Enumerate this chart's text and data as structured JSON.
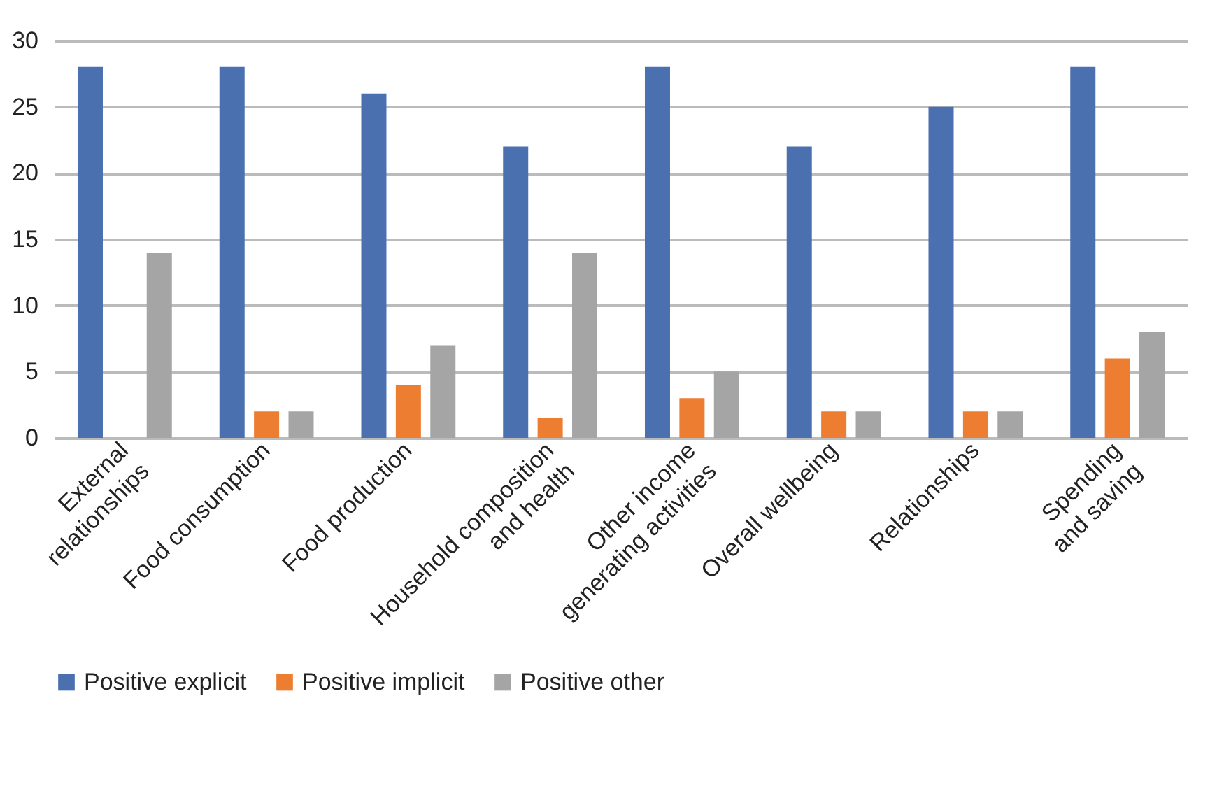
{
  "chart_data": {
    "type": "bar",
    "categories": [
      "External\nrelationships",
      "Food consumption",
      "Food production",
      "Household composition\nand health",
      "Other income\ngenerating activities",
      "Overall wellbeing",
      "Relationships",
      "Spending\nand saving"
    ],
    "series": [
      {
        "name": "Positive explicit",
        "color": "#4a70b0",
        "values": [
          28,
          28,
          26,
          22,
          28,
          22,
          25,
          28
        ]
      },
      {
        "name": "Positive implicit",
        "color": "#ed7d31",
        "values": [
          null,
          2,
          4,
          1.5,
          3,
          2,
          2,
          6
        ]
      },
      {
        "name": "Positive other",
        "color": "#a5a5a5",
        "values": [
          14,
          2,
          7,
          14,
          5,
          2,
          2,
          8
        ]
      }
    ],
    "ylim": [
      0,
      30
    ],
    "yticks": [
      0,
      5,
      10,
      15,
      20,
      25,
      30
    ],
    "grid": "y",
    "legend": "bottom"
  }
}
